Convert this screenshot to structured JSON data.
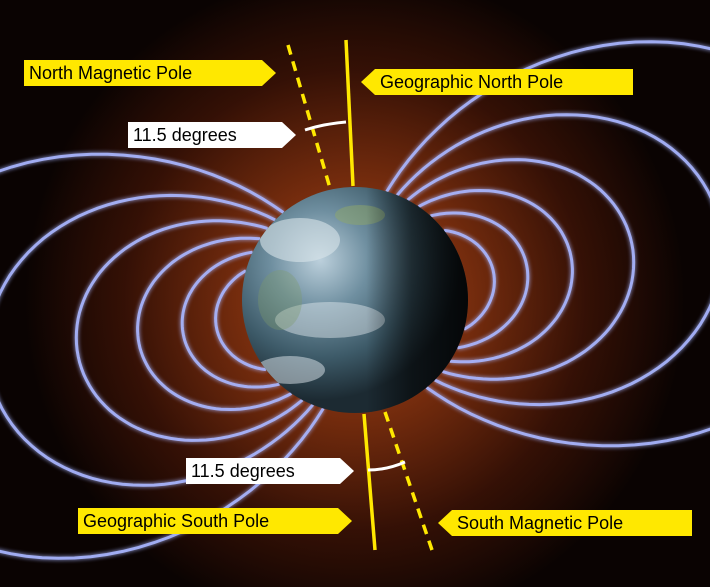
{
  "labels": {
    "north_magnetic_pole": "North Magnetic Pole",
    "geographic_north_pole": "Geographic North Pole",
    "angle_top": "11.5 degrees",
    "angle_bottom": "11.5 degrees",
    "geographic_south_pole": "Geographic South Pole",
    "south_magnetic_pole": "South Magnetic Pole"
  },
  "colors": {
    "label_yellow": "#ffe800",
    "field_line": "#9aa8ff",
    "axis_yellow": "#ffe800",
    "background": "#000000"
  }
}
